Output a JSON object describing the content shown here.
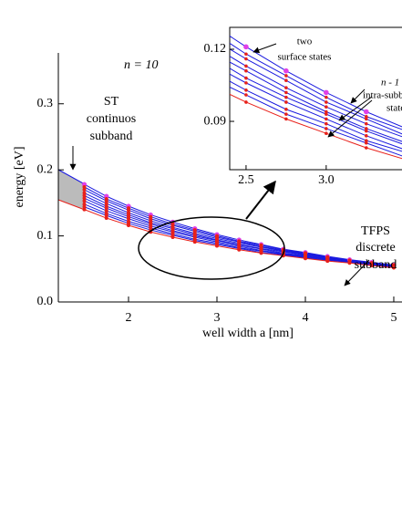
{
  "chart_data": {
    "type": "line",
    "annotations": {
      "n": "n = 10",
      "st": [
        "ST",
        "continuos",
        "subband"
      ],
      "tfps": [
        "TFPS",
        "discrete",
        "subband"
      ],
      "surface": [
        "two",
        "surface states"
      ],
      "intra": [
        "n - 1",
        "intra-subband",
        "states"
      ]
    },
    "xlabel": "well width a [nm]",
    "ylabel": "energy [eV]",
    "x": [
      1.5,
      1.75,
      2,
      2.25,
      2.5,
      2.75,
      3,
      3.25,
      3.5,
      3.75,
      4,
      4.25,
      4.5,
      4.75,
      5
    ],
    "series": [
      {
        "color": "#1a1adf",
        "marker_color": "#e040e8",
        "values": [
          0.178,
          0.16,
          0.145,
          0.132,
          0.121,
          0.111,
          0.102,
          0.094,
          0.087,
          0.08,
          0.075,
          0.069,
          0.064,
          0.06,
          0.056
        ]
      },
      {
        "color": "#1a1adf",
        "marker_color": "#e8201a",
        "values": [
          0.174,
          0.156,
          0.142,
          0.129,
          0.118,
          0.109,
          0.1,
          0.092,
          0.086,
          0.079,
          0.074,
          0.068,
          0.063,
          0.059,
          0.056
        ]
      },
      {
        "color": "#1a1adf",
        "marker_color": "#e8201a",
        "values": [
          0.17,
          0.153,
          0.139,
          0.126,
          0.116,
          0.107,
          0.098,
          0.091,
          0.084,
          0.078,
          0.073,
          0.067,
          0.063,
          0.059,
          0.055
        ]
      },
      {
        "color": "#1a1adf",
        "marker_color": "#e8201a",
        "values": [
          0.165,
          0.149,
          0.135,
          0.123,
          0.113,
          0.104,
          0.096,
          0.089,
          0.083,
          0.077,
          0.072,
          0.067,
          0.062,
          0.058,
          0.055
        ]
      },
      {
        "color": "#1a1adf",
        "marker_color": "#e8201a",
        "values": [
          0.161,
          0.145,
          0.132,
          0.12,
          0.111,
          0.102,
          0.094,
          0.087,
          0.081,
          0.076,
          0.071,
          0.066,
          0.062,
          0.058,
          0.054
        ]
      },
      {
        "color": "#1a1adf",
        "marker_color": "#e8201a",
        "values": [
          0.157,
          0.142,
          0.129,
          0.118,
          0.108,
          0.1,
          0.093,
          0.086,
          0.08,
          0.074,
          0.07,
          0.065,
          0.061,
          0.057,
          0.054
        ]
      },
      {
        "color": "#1a1adf",
        "marker_color": "#e8201a",
        "values": [
          0.153,
          0.138,
          0.126,
          0.115,
          0.106,
          0.098,
          0.091,
          0.084,
          0.078,
          0.073,
          0.069,
          0.064,
          0.061,
          0.057,
          0.053
        ]
      },
      {
        "color": "#1a1adf",
        "marker_color": "#e8201a",
        "values": [
          0.148,
          0.134,
          0.122,
          0.112,
          0.103,
          0.095,
          0.089,
          0.082,
          0.077,
          0.072,
          0.068,
          0.064,
          0.06,
          0.056,
          0.053
        ]
      },
      {
        "color": "#1a1adf",
        "marker_color": "#e8201a",
        "values": [
          0.144,
          0.131,
          0.119,
          0.109,
          0.101,
          0.093,
          0.087,
          0.081,
          0.075,
          0.071,
          0.067,
          0.063,
          0.06,
          0.056,
          0.052
        ]
      },
      {
        "color": "#e8201a",
        "marker_color": "#e8201a",
        "values": [
          0.14,
          0.127,
          0.116,
          0.106,
          0.098,
          0.091,
          0.085,
          0.079,
          0.074,
          0.07,
          0.066,
          0.062,
          0.059,
          0.055,
          0.052
        ]
      }
    ],
    "xlim": [
      1.206,
      5.093
    ],
    "ylim": [
      0,
      0.377
    ],
    "xticks": [
      2,
      3,
      4,
      5
    ],
    "yticks": [
      {
        "value": 0,
        "label": "0.0"
      },
      0.1,
      0.2,
      0.3
    ],
    "inset": {
      "xlim": [
        2.398,
        3.473
      ],
      "ylim": [
        0.0699,
        0.1291
      ],
      "xticks": [
        2.5,
        {
          "value": 3,
          "label": "3.0"
        }
      ],
      "yticks": [
        0.09,
        0.12
      ]
    }
  }
}
